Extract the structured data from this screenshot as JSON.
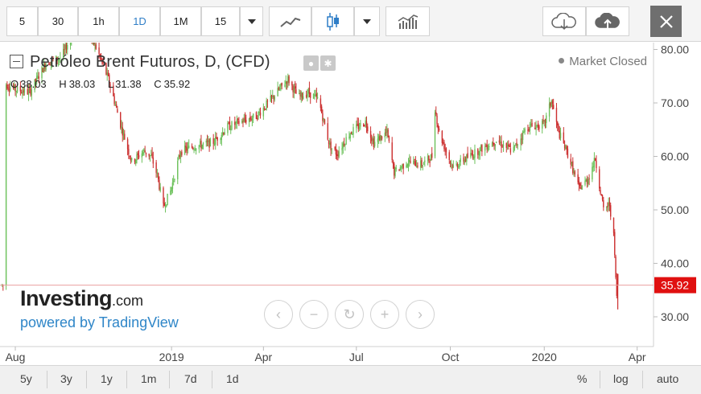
{
  "toolbar": {
    "intervals": [
      "5",
      "30",
      "1h",
      "1D",
      "1M",
      "15"
    ],
    "active_interval": "1D",
    "icons": [
      "dropdown-arrow-icon",
      "line-chart-icon",
      "candlestick-icon",
      "dropdown-arrow-icon",
      "indicators-icon",
      "cloud-download-icon",
      "cloud-upload-icon",
      "close-icon"
    ]
  },
  "legend": {
    "title": "Petróleo Brent Futuros, D, (CFD)",
    "o_label": "O",
    "o_value": "38.03",
    "h_label": "H",
    "h_value": "38.03",
    "l_label": "L",
    "l_value": "31.38",
    "c_label": "C",
    "c_value": "35.92",
    "market_status": "Market Closed"
  },
  "branding": {
    "name": "Investing",
    "suffix": ".com",
    "powered_by": "powered by TradingView"
  },
  "bottom_bar": {
    "ranges": [
      "5y",
      "3y",
      "1y",
      "1m",
      "7d",
      "1d"
    ],
    "options": [
      "%",
      "log",
      "auto"
    ]
  },
  "colors": {
    "up": "#6cc15b",
    "down": "#cc3030",
    "price_line": "#e9a0a0",
    "price_label_bg": "#e01010",
    "accent": "#2f7ec7"
  },
  "chart_data": {
    "type": "candlestick",
    "title": "Petróleo Brent Futuros, D, (CFD)",
    "x_ticks": [
      "Aug",
      "2019",
      "Apr",
      "Jul",
      "Oct",
      "2020",
      "Apr"
    ],
    "y_ticks": [
      "30.00",
      "40.00",
      "50.00",
      "60.00",
      "70.00",
      "80.00"
    ],
    "ylim": [
      25,
      81
    ],
    "last_price": 35.92,
    "last_price_label": "35.92",
    "price_path": [
      [
        "2018-07-23",
        73.5
      ],
      [
        "2018-08-01",
        72.5
      ],
      [
        "2018-08-15",
        72
      ],
      [
        "2018-08-31",
        77.5
      ],
      [
        "2018-09-15",
        78.5
      ],
      [
        "2018-10-03",
        86
      ],
      [
        "2018-10-20",
        80
      ],
      [
        "2018-11-01",
        74
      ],
      [
        "2018-11-12",
        66
      ],
      [
        "2018-11-23",
        59
      ],
      [
        "2018-12-05",
        61
      ],
      [
        "2018-12-12",
        60
      ],
      [
        "2018-12-18",
        56.5
      ],
      [
        "2018-12-24",
        50.5
      ],
      [
        "2018-12-31",
        53.5
      ],
      [
        "2019-01-10",
        61
      ],
      [
        "2019-01-25",
        62
      ],
      [
        "2019-02-10",
        62.5
      ],
      [
        "2019-02-25",
        65.5
      ],
      [
        "2019-03-10",
        66.5
      ],
      [
        "2019-03-25",
        67.5
      ],
      [
        "2019-04-10",
        71
      ],
      [
        "2019-04-25",
        74.5
      ],
      [
        "2019-05-05",
        71
      ],
      [
        "2019-05-15",
        72
      ],
      [
        "2019-05-25",
        70.5
      ],
      [
        "2019-06-05",
        62
      ],
      [
        "2019-06-12",
        60.5
      ],
      [
        "2019-06-25",
        64.5
      ],
      [
        "2019-07-10",
        66.5
      ],
      [
        "2019-07-18",
        62.5
      ],
      [
        "2019-07-31",
        64.5
      ],
      [
        "2019-08-07",
        57
      ],
      [
        "2019-08-20",
        59
      ],
      [
        "2019-09-03",
        58.5
      ],
      [
        "2019-09-13",
        60
      ],
      [
        "2019-09-16",
        69
      ],
      [
        "2019-09-20",
        64.5
      ],
      [
        "2019-10-01",
        59
      ],
      [
        "2019-10-04",
        58
      ],
      [
        "2019-10-15",
        59.5
      ],
      [
        "2019-11-01",
        61.5
      ],
      [
        "2019-11-15",
        63
      ],
      [
        "2019-12-01",
        61
      ],
      [
        "2019-12-15",
        65.5
      ],
      [
        "2020-01-01",
        66
      ],
      [
        "2020-01-08",
        70.5
      ],
      [
        "2020-01-15",
        64.5
      ],
      [
        "2020-01-25",
        60
      ],
      [
        "2020-02-04",
        54
      ],
      [
        "2020-02-12",
        55.5
      ],
      [
        "2020-02-20",
        59.5
      ],
      [
        "2020-02-28",
        50
      ],
      [
        "2020-03-05",
        51
      ],
      [
        "2020-03-09",
        45
      ],
      [
        "2020-03-12",
        33.5
      ],
      [
        "2020-03-13",
        35.92
      ]
    ]
  }
}
